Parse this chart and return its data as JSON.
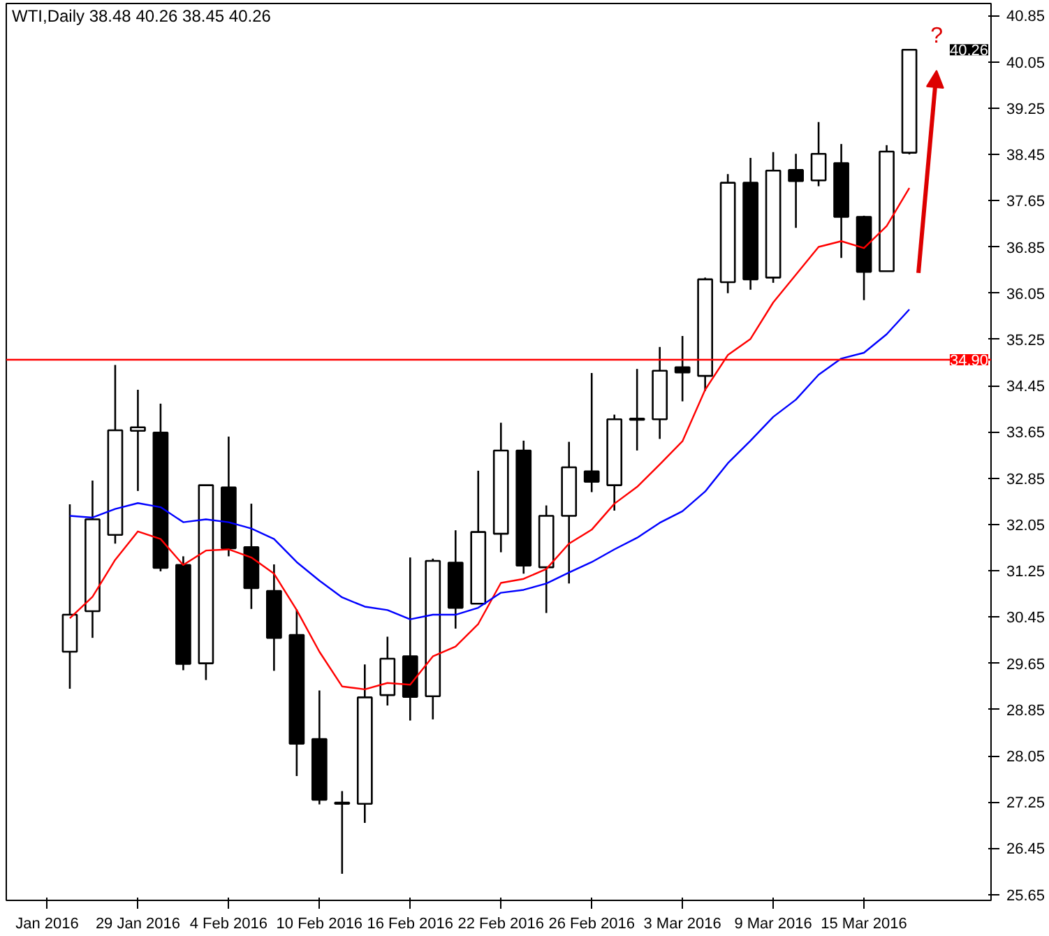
{
  "chart_data": {
    "type": "candlestick",
    "title": "WTI,Daily  38.48 40.26 38.45 40.26",
    "categories": [
      "Jan 2016",
      null,
      null,
      null,
      "29 Jan 2016",
      null,
      null,
      null,
      "4 Feb 2016",
      null,
      null,
      null,
      "10 Feb 2016",
      null,
      null,
      null,
      "16 Feb 2016",
      null,
      null,
      null,
      "22 Feb 2016",
      null,
      null,
      null,
      "26 Feb 2016",
      null,
      null,
      null,
      "3 Mar 2016",
      null,
      null,
      null,
      "9 Mar 2016",
      null,
      null,
      null,
      "15 Mar 2016",
      null,
      null
    ],
    "ohlc": [
      null,
      [
        29.85,
        32.4,
        29.21,
        30.49
      ],
      [
        30.55,
        32.81,
        30.09,
        32.14
      ],
      [
        31.87,
        34.81,
        31.72,
        33.68
      ],
      [
        33.67,
        34.38,
        32.63,
        33.73
      ],
      [
        33.64,
        34.14,
        31.24,
        31.3
      ],
      [
        31.35,
        31.5,
        29.53,
        29.64
      ],
      [
        29.65,
        32.73,
        29.36,
        32.73
      ],
      [
        32.69,
        33.57,
        31.5,
        31.64
      ],
      [
        31.66,
        32.41,
        30.59,
        30.95
      ],
      [
        30.9,
        31.36,
        29.52,
        30.09
      ],
      [
        30.14,
        30.58,
        27.7,
        28.26
      ],
      [
        28.34,
        29.18,
        27.21,
        27.29
      ],
      [
        27.24,
        27.44,
        26.01,
        27.22
      ],
      [
        27.22,
        29.63,
        26.89,
        29.06
      ],
      [
        29.1,
        30.11,
        28.92,
        29.73
      ],
      [
        29.77,
        31.48,
        28.66,
        29.07
      ],
      [
        29.08,
        31.46,
        28.68,
        31.42
      ],
      [
        31.39,
        31.95,
        30.25,
        30.61
      ],
      [
        30.68,
        32.98,
        30.68,
        31.92
      ],
      [
        31.89,
        33.81,
        31.57,
        33.33
      ],
      [
        33.33,
        33.5,
        31.2,
        31.34
      ],
      [
        31.31,
        32.38,
        30.52,
        32.2
      ],
      [
        32.2,
        33.48,
        31.03,
        33.04
      ],
      [
        32.97,
        34.67,
        32.61,
        32.79
      ],
      [
        32.73,
        33.95,
        32.29,
        33.87
      ],
      [
        33.88,
        34.74,
        33.33,
        33.86
      ],
      [
        33.87,
        35.12,
        33.53,
        34.71
      ],
      [
        34.77,
        35.31,
        34.18,
        34.68
      ],
      [
        34.62,
        36.32,
        34.36,
        36.29
      ],
      [
        36.24,
        38.11,
        36.05,
        37.96
      ],
      [
        37.96,
        38.39,
        36.11,
        36.29
      ],
      [
        36.32,
        38.49,
        36.23,
        38.17
      ],
      [
        38.18,
        38.46,
        37.18,
        37.99
      ],
      [
        38.0,
        39.01,
        37.9,
        38.46
      ],
      [
        38.3,
        38.63,
        36.66,
        37.37
      ],
      [
        37.37,
        37.39,
        35.93,
        36.42
      ],
      [
        36.43,
        38.61,
        36.43,
        38.5
      ],
      [
        38.48,
        40.26,
        38.45,
        40.26
      ]
    ],
    "series": [
      {
        "type": "line",
        "color": "#ff0000",
        "values": [
          null,
          30.43,
          30.8,
          31.44,
          31.93,
          31.8,
          31.35,
          31.6,
          31.62,
          31.48,
          31.2,
          30.57,
          29.85,
          29.25,
          29.2,
          29.31,
          29.28,
          29.77,
          29.94,
          30.33,
          31.04,
          31.11,
          31.28,
          31.72,
          31.96,
          32.41,
          32.7,
          33.09,
          33.49,
          34.38,
          34.98,
          35.26,
          35.89,
          36.37,
          36.85,
          36.95,
          36.83,
          37.21,
          37.87
        ]
      },
      {
        "type": "line",
        "color": "#0000ff",
        "values": [
          null,
          32.2,
          32.17,
          32.32,
          32.42,
          32.35,
          32.09,
          32.14,
          32.09,
          31.98,
          31.8,
          31.4,
          31.08,
          30.79,
          30.63,
          30.57,
          30.41,
          30.49,
          30.49,
          30.61,
          30.87,
          30.92,
          31.03,
          31.22,
          31.4,
          31.62,
          31.82,
          32.08,
          32.28,
          32.62,
          33.11,
          33.5,
          33.91,
          34.21,
          34.64,
          34.92,
          35.02,
          35.34,
          35.77
        ]
      }
    ],
    "ylim": [
      25.55,
      41.06
    ],
    "yticks": [
      25.65,
      26.45,
      27.25,
      28.05,
      28.85,
      29.65,
      30.45,
      31.25,
      32.05,
      32.85,
      33.65,
      34.45,
      35.25,
      36.05,
      36.85,
      37.65,
      38.45,
      39.25,
      40.05,
      40.85
    ],
    "ref_lines": [
      {
        "axis": "y",
        "value": 34.9,
        "label": "34.90",
        "color": "#ff0000"
      }
    ],
    "annotations": [
      "40.26",
      "?"
    ],
    "grid": false
  }
}
